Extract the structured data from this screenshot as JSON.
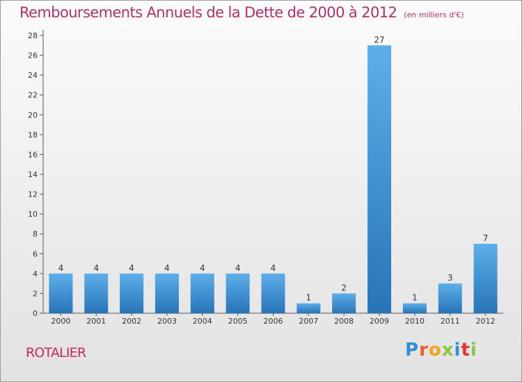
{
  "title": "Remboursements Annuels de la Dette de 2000 à 2012",
  "unit": "(en milliers d'€)",
  "city": "ROTALIER",
  "logo": {
    "letters": [
      "P",
      "r",
      "o",
      "x",
      "i",
      "t",
      "i"
    ],
    "colors": [
      "#2f8fd6",
      "#e2612a",
      "#f2a21b",
      "#8cc63f",
      "#2f8fd6",
      "#e8322c",
      "#8cc63f"
    ]
  },
  "colors": {
    "bar_light": "#5dafea",
    "bar_dark": "#2774b8",
    "title": "#b0306a",
    "city": "#c8295a"
  },
  "chart_data": {
    "type": "bar",
    "categories": [
      "2000",
      "2001",
      "2002",
      "2003",
      "2004",
      "2005",
      "2006",
      "2007",
      "2008",
      "2009",
      "2010",
      "2011",
      "2012"
    ],
    "values": [
      4,
      4,
      4,
      4,
      4,
      4,
      4,
      1,
      2,
      27,
      1,
      3,
      7
    ],
    "value_labels": [
      "4",
      "4",
      "4",
      "4",
      "4",
      "4",
      "4",
      "1",
      "2",
      "27",
      "1",
      "3",
      "7"
    ],
    "yticks": [
      "0",
      "2",
      "4",
      "6",
      "8",
      "10",
      "12",
      "14",
      "16",
      "18",
      "20",
      "22",
      "24",
      "26",
      "28"
    ],
    "ylim": [
      0,
      28
    ],
    "grid": false
  }
}
